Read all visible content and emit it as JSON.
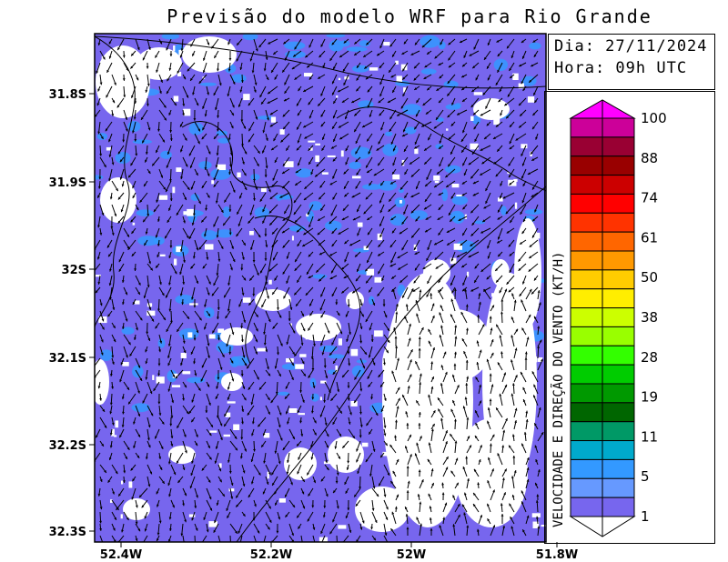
{
  "title": "Previsão do modelo WRF para Rio Grande",
  "info": {
    "date": "Dia: 27/11/2024",
    "hour": "Hora: 09h UTC"
  },
  "colorbar": {
    "label": "VELOCIDADE E DIREÇÃO DO VENTO (KT/H)",
    "ticks": [
      "100",
      "88",
      "74",
      "61",
      "50",
      "38",
      "28",
      "19",
      "11",
      "5",
      "1"
    ],
    "colors": [
      "#cc0099",
      "#990033",
      "#990000",
      "#cc0000",
      "#ff0000",
      "#ff3300",
      "#ff6600",
      "#ff9900",
      "#ffcc00",
      "#ffee00",
      "#ccff00",
      "#99ff00",
      "#33ff00",
      "#00cc00",
      "#009900",
      "#006600",
      "#009966",
      "#00aacc",
      "#3399ff",
      "#6699ff",
      "#7766ee"
    ],
    "top_arrow_color": "#ff00ff",
    "bottom_arrow_color": "#ffffff"
  },
  "axes": {
    "y_ticks": [
      "31.8S",
      "31.9S",
      "32S",
      "32.1S",
      "32.2S",
      "32.3S"
    ],
    "x_ticks": [
      "52.4W",
      "52.2W",
      "52W",
      "51.8W"
    ]
  },
  "map": {
    "background_color": "#7766ee",
    "high_speed_color": "#3399ff"
  }
}
